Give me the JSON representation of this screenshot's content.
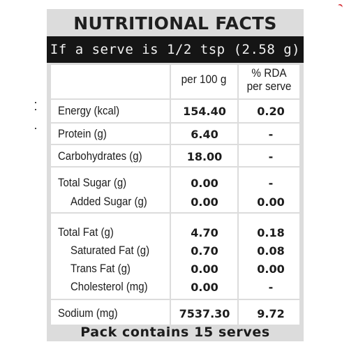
{
  "label": {
    "title": "NUTRITIONAL FACTS",
    "serve_info": "If a serve is 1/2 tsp (2.58 g)",
    "headers": {
      "per_100g": "per 100 g",
      "rda_line1": "% RDA",
      "rda_line2": "per serve"
    },
    "rows": [
      {
        "name": "Energy (kcal)",
        "per_100g": "154.40",
        "rda": "0.20"
      },
      {
        "name": "Protein (g)",
        "per_100g": "6.40",
        "rda": "-"
      },
      {
        "name": "Carbohydrates (g)",
        "per_100g": "18.00",
        "rda": "-"
      },
      {
        "name": "Total Sugar (g)",
        "per_100g": "0.00",
        "rda": "-"
      },
      {
        "name": "Added Sugar (g)",
        "per_100g": "0.00",
        "rda": "0.00"
      },
      {
        "name": "Total Fat (g)",
        "per_100g": "4.70",
        "rda": "0.18"
      },
      {
        "name": "Saturated Fat (g)",
        "per_100g": "0.70",
        "rda": "0.08"
      },
      {
        "name": "Trans Fat (g)",
        "per_100g": "0.00",
        "rda": "0.00"
      },
      {
        "name": "Cholesterol (mg)",
        "per_100g": "0.00",
        "rda": "-"
      },
      {
        "name": "Sodium (mg)",
        "per_100g": "7537.30",
        "rda": "9.72"
      }
    ],
    "footer": "Pack contains 15 serves"
  },
  "colors": {
    "panel_gray": "#dcdcdc",
    "banner_black": "#151515",
    "text_dark": "#1c1c1c"
  }
}
